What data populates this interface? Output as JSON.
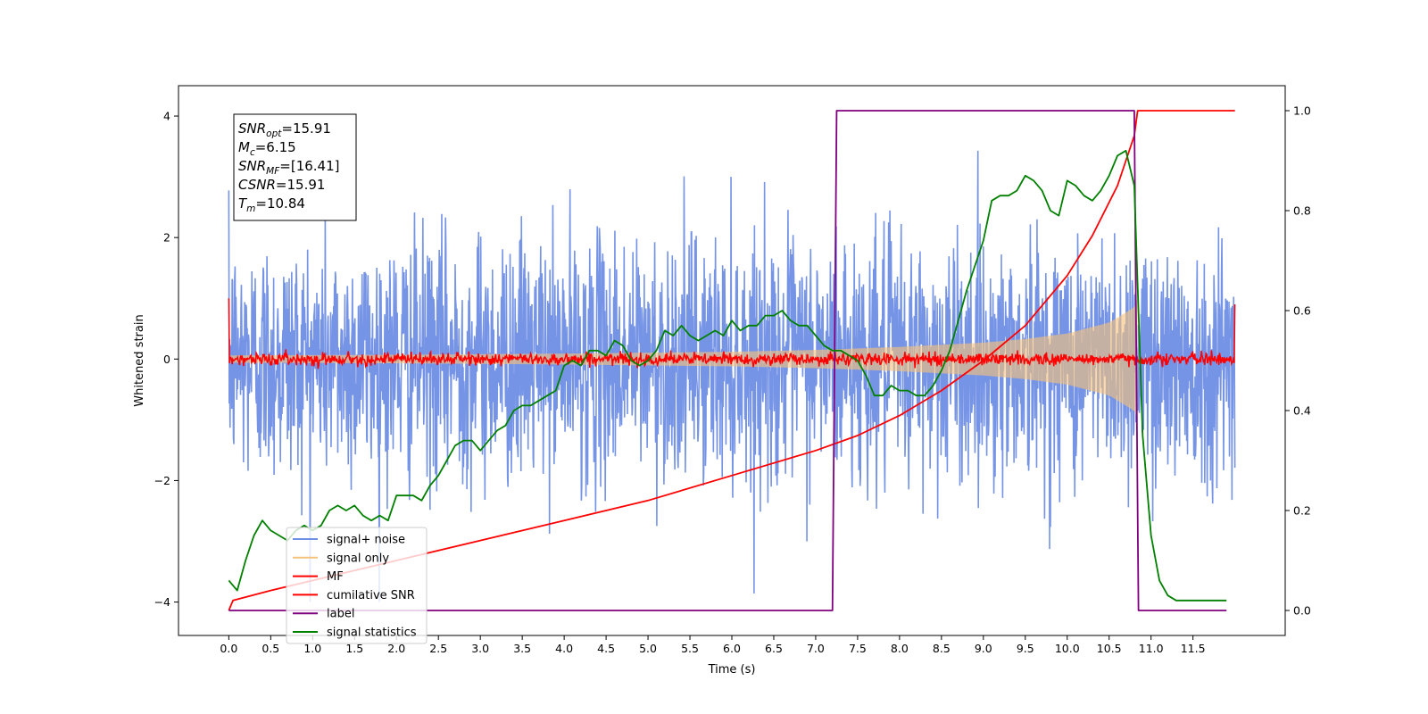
{
  "chart_data": {
    "type": "line",
    "title": "",
    "xlabel": "Time (s)",
    "ylabel": "Whitened strain",
    "xlim": [
      -0.6,
      12.6
    ],
    "ylim_left": [
      -4.55,
      4.5
    ],
    "ylim_right": [
      -0.05,
      1.05
    ],
    "x_ticks": [
      "0.0",
      "0.5",
      "1.0",
      "1.5",
      "2.0",
      "2.5",
      "3.0",
      "3.5",
      "4.0",
      "4.5",
      "5.0",
      "5.5",
      "6.0",
      "6.5",
      "7.0",
      "7.5",
      "8.0",
      "8.5",
      "9.0",
      "9.5",
      "10.0",
      "10.5",
      "11.0",
      "11.5"
    ],
    "y_ticks_left": [
      "−4",
      "−2",
      "0",
      "2",
      "4"
    ],
    "y_ticks_right": [
      "0.0",
      "0.2",
      "0.4",
      "0.6",
      "0.8",
      "1.0"
    ],
    "grid": false,
    "legend_position": "lower-left",
    "annotation": {
      "lines": [
        {
          "sym": "SNR",
          "sub": "opt",
          "value": "=15.91"
        },
        {
          "sym": "M",
          "sub": "c",
          "value": "=6.15"
        },
        {
          "sym": "SNR",
          "sub": "MF",
          "value": "=[16.41]"
        },
        {
          "sym": "CSNR",
          "sub": "",
          "value": "=15.91"
        },
        {
          "sym": "T",
          "sub": "m",
          "value": "=10.84"
        }
      ]
    },
    "series": [
      {
        "name": "signal+ noise",
        "axis": "left",
        "color": "#6f8ee5",
        "kind": "noise",
        "amplitude_sigma": 1.0,
        "x_range": [
          0,
          12
        ]
      },
      {
        "name": "signal only",
        "axis": "left",
        "color": "#f5c27a",
        "kind": "chirp",
        "envelope": {
          "x": [
            0,
            2,
            4,
            6,
            7,
            8,
            9,
            9.5,
            10,
            10.5,
            10.8,
            10.84
          ],
          "y": [
            0.06,
            0.07,
            0.09,
            0.12,
            0.15,
            0.2,
            0.27,
            0.33,
            0.42,
            0.6,
            0.85,
            1.0
          ]
        }
      },
      {
        "name": "MF",
        "axis": "left",
        "color": "#ff0000",
        "kind": "mf",
        "amplitude_sigma": 0.05,
        "end_values": {
          "start": 1.0,
          "end": 0.9
        }
      },
      {
        "name": "cumilative SNR",
        "axis": "right",
        "color": "#ff0000",
        "x": [
          0,
          0.05,
          0.5,
          1,
          2,
          3,
          4,
          5,
          6,
          7,
          7.5,
          8,
          8.5,
          9,
          9.5,
          10,
          10.3,
          10.6,
          10.8,
          10.84,
          11.0,
          12.0
        ],
        "y": [
          0.0,
          0.02,
          0.04,
          0.06,
          0.1,
          0.14,
          0.18,
          0.22,
          0.27,
          0.32,
          0.35,
          0.39,
          0.44,
          0.5,
          0.57,
          0.67,
          0.75,
          0.85,
          0.95,
          1.0,
          1.0,
          1.0
        ]
      },
      {
        "name": "label",
        "axis": "right",
        "color": "#800080",
        "x": [
          0,
          7.2,
          7.25,
          10.8,
          10.85,
          11.9
        ],
        "y": [
          0,
          0,
          1,
          1,
          0,
          0
        ]
      },
      {
        "name": "signal statistics",
        "axis": "right",
        "color": "#008000",
        "x": [
          0,
          0.1,
          0.2,
          0.3,
          0.4,
          0.5,
          0.6,
          0.7,
          0.8,
          0.9,
          1.0,
          1.1,
          1.2,
          1.3,
          1.4,
          1.5,
          1.6,
          1.7,
          1.8,
          1.9,
          2.0,
          2.1,
          2.2,
          2.3,
          2.4,
          2.5,
          2.6,
          2.7,
          2.8,
          2.9,
          3.0,
          3.1,
          3.2,
          3.3,
          3.4,
          3.5,
          3.6,
          3.7,
          3.8,
          3.9,
          4.0,
          4.1,
          4.2,
          4.3,
          4.4,
          4.5,
          4.6,
          4.7,
          4.8,
          4.9,
          5.0,
          5.1,
          5.2,
          5.3,
          5.4,
          5.5,
          5.6,
          5.7,
          5.8,
          5.9,
          6.0,
          6.1,
          6.2,
          6.3,
          6.4,
          6.5,
          6.6,
          6.7,
          6.8,
          6.9,
          7.0,
          7.1,
          7.2,
          7.3,
          7.4,
          7.5,
          7.6,
          7.7,
          7.8,
          7.9,
          8.0,
          8.1,
          8.2,
          8.3,
          8.4,
          8.5,
          8.6,
          8.7,
          8.8,
          8.9,
          9.0,
          9.1,
          9.2,
          9.3,
          9.4,
          9.5,
          9.6,
          9.7,
          9.8,
          9.9,
          10.0,
          10.1,
          10.2,
          10.3,
          10.4,
          10.5,
          10.6,
          10.7,
          10.8,
          10.9,
          11.0,
          11.1,
          11.2,
          11.3,
          11.4,
          11.5,
          11.6,
          11.7,
          11.8,
          11.9
        ],
        "y": [
          0.06,
          0.04,
          0.1,
          0.15,
          0.18,
          0.16,
          0.15,
          0.14,
          0.16,
          0.17,
          0.16,
          0.17,
          0.2,
          0.21,
          0.2,
          0.21,
          0.19,
          0.18,
          0.19,
          0.18,
          0.23,
          0.23,
          0.23,
          0.22,
          0.25,
          0.27,
          0.3,
          0.33,
          0.34,
          0.34,
          0.32,
          0.34,
          0.36,
          0.37,
          0.4,
          0.41,
          0.41,
          0.42,
          0.43,
          0.44,
          0.49,
          0.5,
          0.49,
          0.52,
          0.52,
          0.51,
          0.54,
          0.53,
          0.5,
          0.49,
          0.5,
          0.52,
          0.56,
          0.55,
          0.57,
          0.55,
          0.54,
          0.55,
          0.56,
          0.55,
          0.58,
          0.56,
          0.57,
          0.57,
          0.59,
          0.59,
          0.6,
          0.58,
          0.57,
          0.57,
          0.55,
          0.53,
          0.52,
          0.52,
          0.51,
          0.5,
          0.47,
          0.43,
          0.43,
          0.45,
          0.44,
          0.44,
          0.43,
          0.43,
          0.45,
          0.48,
          0.52,
          0.58,
          0.64,
          0.69,
          0.74,
          0.82,
          0.83,
          0.83,
          0.84,
          0.87,
          0.86,
          0.84,
          0.8,
          0.79,
          0.86,
          0.85,
          0.83,
          0.82,
          0.84,
          0.87,
          0.91,
          0.92,
          0.85,
          0.35,
          0.15,
          0.06,
          0.03,
          0.02,
          0.02,
          0.02,
          0.02,
          0.02,
          0.02,
          0.02
        ]
      }
    ]
  }
}
